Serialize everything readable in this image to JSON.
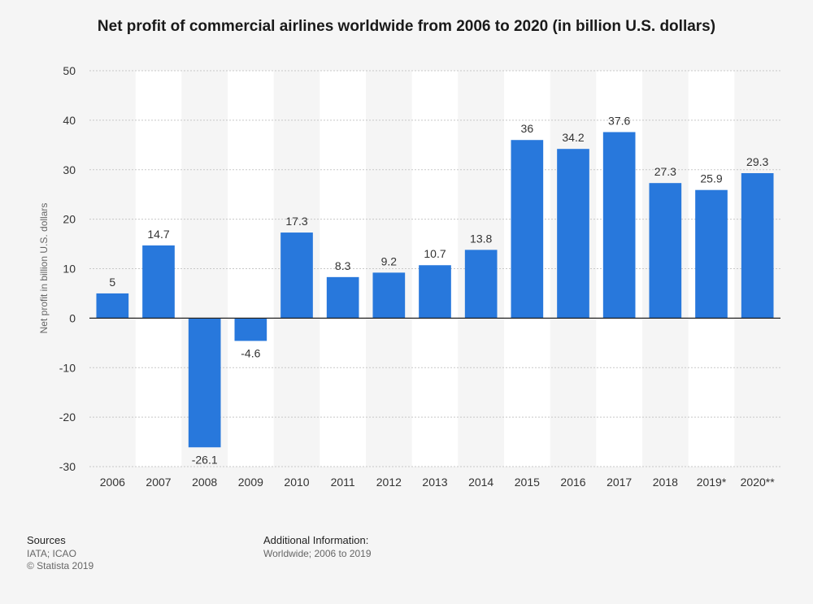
{
  "chart_data": {
    "type": "bar",
    "title": "Net profit of commercial airlines worldwide from 2006 to 2020 (in billion U.S. dollars)",
    "xlabel": "",
    "ylabel": "Net profit in billion U.S. dollars",
    "categories": [
      "2006",
      "2007",
      "2008",
      "2009",
      "2010",
      "2011",
      "2012",
      "2013",
      "2014",
      "2015",
      "2016",
      "2017",
      "2018",
      "2019*",
      "2020**"
    ],
    "values": [
      5,
      14.7,
      -26.1,
      -4.6,
      17.3,
      8.3,
      9.2,
      10.7,
      13.8,
      36,
      34.2,
      37.6,
      27.3,
      25.9,
      29.3
    ],
    "data_labels": [
      "5",
      "14.7",
      "-26.1",
      "-4.6",
      "17.3",
      "8.3",
      "9.2",
      "10.7",
      "13.8",
      "36",
      "34.2",
      "37.6",
      "27.3",
      "25.9",
      "29.3"
    ],
    "ylim": [
      -30,
      50
    ],
    "yticks": [
      -30,
      -20,
      -10,
      0,
      10,
      20,
      30,
      40,
      50
    ],
    "grid": true,
    "legend": "none",
    "bar_color": "#2878dc"
  },
  "footer": {
    "sources_heading": "Sources",
    "sources_lines": [
      "IATA; ICAO",
      "© Statista 2019"
    ],
    "additional_heading": "Additional Information:",
    "additional_lines": [
      "Worldwide; 2006 to 2019"
    ]
  }
}
